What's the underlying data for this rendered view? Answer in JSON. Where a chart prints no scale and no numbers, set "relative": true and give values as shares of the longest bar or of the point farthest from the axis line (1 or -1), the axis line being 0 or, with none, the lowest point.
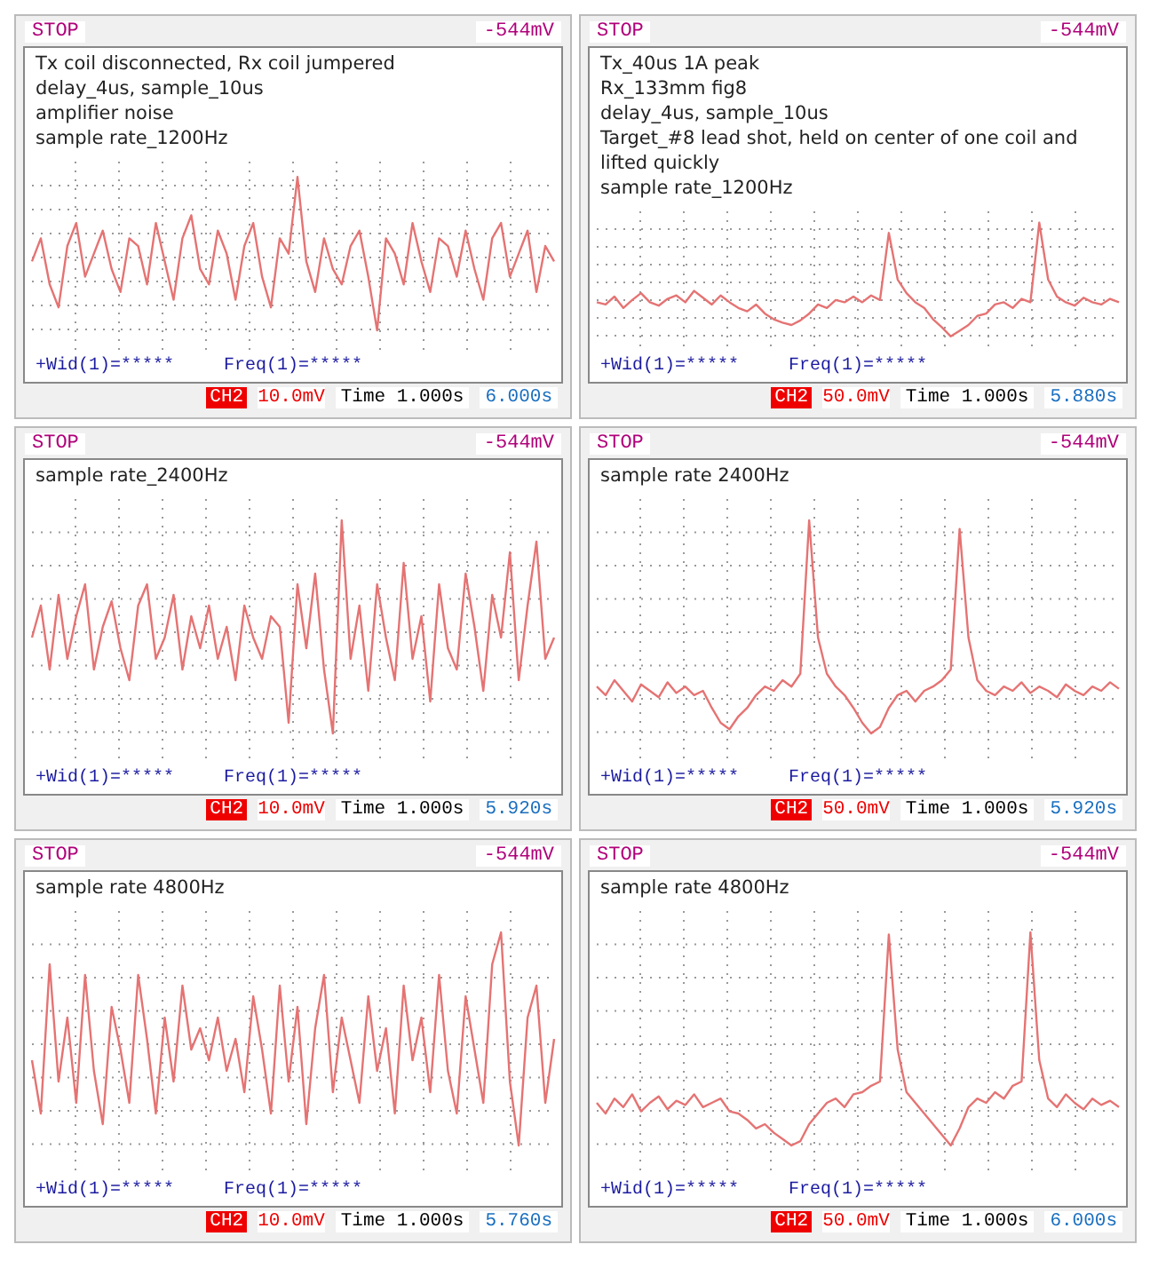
{
  "chart_data": [
    {
      "type": "line",
      "relative": true,
      "tick_labels": false,
      "grid": true,
      "marker": "none",
      "categories": [
        null,
        null,
        null,
        null,
        null,
        null,
        null,
        null,
        null,
        null,
        null,
        null,
        null,
        null,
        null,
        null,
        null,
        null,
        null,
        null,
        null,
        null,
        null,
        null,
        null,
        null,
        null,
        null,
        null,
        null,
        null,
        null,
        null,
        null,
        null,
        null,
        null,
        null,
        null,
        null,
        null,
        null,
        null,
        null,
        null,
        null,
        null,
        null,
        null,
        null,
        null,
        null,
        null,
        null,
        null,
        null,
        null,
        null,
        null,
        null
      ],
      "series": [
        {
          "color": "#e57373",
          "values": [
            0.45,
            0.6,
            0.3,
            0.15,
            0.55,
            0.7,
            0.35,
            0.5,
            0.65,
            0.4,
            0.25,
            0.6,
            0.55,
            0.3,
            0.7,
            0.45,
            0.2,
            0.6,
            0.75,
            0.4,
            0.3,
            0.65,
            0.5,
            0.2,
            0.55,
            0.7,
            0.35,
            0.15,
            0.6,
            0.5,
            1,
            0.45,
            0.25,
            0.6,
            0.4,
            0.3,
            0.55,
            0.65,
            0.35,
            0.0,
            0.6,
            0.5,
            0.3,
            0.7,
            0.45,
            0.25,
            0.6,
            0.55,
            0.35,
            0.65,
            0.4,
            0.2,
            0.6,
            0.7,
            0.35,
            0.5,
            0.65,
            0.25,
            0.55,
            0.45
          ]
        }
      ],
      "annotations": [
        "STOP",
        "-544mV",
        "Tx coil disconnected, Rx coil jumpered",
        "delay_4us, sample_10us",
        "amplifier noise",
        "sample rate_1200Hz",
        "+Wid(1)=*****",
        "Freq(1)=*****",
        "CH2",
        "10.0mV",
        "Time 1.000s",
        "6.000s"
      ]
    },
    {
      "type": "line",
      "relative": true,
      "tick_labels": false,
      "grid": true,
      "marker": "none",
      "categories": [
        null,
        null,
        null,
        null,
        null,
        null,
        null,
        null,
        null,
        null,
        null,
        null,
        null,
        null,
        null,
        null,
        null,
        null,
        null,
        null,
        null,
        null,
        null,
        null,
        null,
        null,
        null,
        null,
        null,
        null,
        null,
        null,
        null,
        null,
        null,
        null,
        null,
        null,
        null,
        null,
        null,
        null,
        null,
        null,
        null,
        null,
        null,
        null,
        null,
        null,
        null,
        null,
        null,
        null,
        null,
        null,
        null,
        null,
        null,
        null
      ],
      "series": [
        {
          "color": "#e57373",
          "values": [
            0.3,
            0.28,
            0.35,
            0.25,
            0.32,
            0.38,
            0.3,
            0.27,
            0.33,
            0.36,
            0.3,
            0.4,
            0.34,
            0.28,
            0.36,
            0.3,
            0.25,
            0.22,
            0.28,
            0.2,
            0.15,
            0.12,
            0.1,
            0.14,
            0.2,
            0.28,
            0.25,
            0.32,
            0.3,
            0.35,
            0.3,
            0.36,
            0.32,
            0.91,
            0.5,
            0.38,
            0.3,
            0.25,
            0.15,
            0.08,
            0.0,
            0.05,
            0.1,
            0.18,
            0.2,
            0.28,
            0.3,
            0.25,
            0.33,
            0.3,
            1,
            0.5,
            0.35,
            0.3,
            0.27,
            0.34,
            0.3,
            0.28,
            0.33,
            0.3
          ]
        }
      ],
      "annotations": [
        "STOP",
        "-544mV",
        "Tx_40us 1A peak",
        "Rx_133mm fig8",
        "delay_4us,   sample_10us",
        "Target_#8 lead shot, held on center of  one coil and lifted quickly",
        "sample rate_1200Hz",
        "+Wid(1)=*****",
        "Freq(1)=*****",
        "CH2",
        "50.0mV",
        "Time 1.000s",
        "5.880s"
      ]
    },
    {
      "type": "line",
      "relative": true,
      "tick_labels": false,
      "grid": true,
      "marker": "none",
      "categories": [
        null,
        null,
        null,
        null,
        null,
        null,
        null,
        null,
        null,
        null,
        null,
        null,
        null,
        null,
        null,
        null,
        null,
        null,
        null,
        null,
        null,
        null,
        null,
        null,
        null,
        null,
        null,
        null,
        null,
        null,
        null,
        null,
        null,
        null,
        null,
        null,
        null,
        null,
        null,
        null,
        null,
        null,
        null,
        null,
        null,
        null,
        null,
        null,
        null,
        null,
        null,
        null,
        null,
        null,
        null,
        null,
        null,
        null,
        null,
        null
      ],
      "series": [
        {
          "color": "#e57373",
          "values": [
            0.45,
            0.6,
            0.3,
            0.65,
            0.35,
            0.55,
            0.7,
            0.3,
            0.5,
            0.62,
            0.4,
            0.25,
            0.6,
            0.7,
            0.35,
            0.45,
            0.65,
            0.3,
            0.55,
            0.4,
            0.6,
            0.35,
            0.5,
            0.25,
            0.6,
            0.45,
            0.35,
            0.55,
            0.5,
            0.05,
            0.7,
            0.4,
            0.75,
            0.3,
            0.0,
            1,
            0.35,
            0.6,
            0.2,
            0.7,
            0.45,
            0.25,
            0.8,
            0.35,
            0.55,
            0.15,
            0.7,
            0.4,
            0.3,
            0.75,
            0.5,
            0.2,
            0.65,
            0.45,
            0.85,
            0.25,
            0.6,
            0.9,
            0.35,
            0.45
          ]
        }
      ],
      "annotations": [
        "STOP",
        "-544mV",
        "sample rate_2400Hz",
        "+Wid(1)=*****",
        "Freq(1)=*****",
        "CH2",
        "10.0mV",
        "Time 1.000s",
        "5.920s"
      ]
    },
    {
      "type": "line",
      "relative": true,
      "tick_labels": false,
      "grid": true,
      "marker": "none",
      "categories": [
        null,
        null,
        null,
        null,
        null,
        null,
        null,
        null,
        null,
        null,
        null,
        null,
        null,
        null,
        null,
        null,
        null,
        null,
        null,
        null,
        null,
        null,
        null,
        null,
        null,
        null,
        null,
        null,
        null,
        null,
        null,
        null,
        null,
        null,
        null,
        null,
        null,
        null,
        null,
        null,
        null,
        null,
        null,
        null,
        null,
        null,
        null,
        null,
        null,
        null,
        null,
        null,
        null,
        null,
        null,
        null,
        null,
        null,
        null,
        null
      ],
      "series": [
        {
          "color": "#e57373",
          "values": [
            0.22,
            0.18,
            0.25,
            0.2,
            0.15,
            0.23,
            0.2,
            0.17,
            0.24,
            0.19,
            0.22,
            0.18,
            0.2,
            0.12,
            0.05,
            0.02,
            0.08,
            0.12,
            0.18,
            0.22,
            0.2,
            0.25,
            0.22,
            0.28,
            1,
            0.45,
            0.28,
            0.22,
            0.18,
            0.12,
            0.05,
            0.0,
            0.03,
            0.12,
            0.18,
            0.2,
            0.15,
            0.2,
            0.22,
            0.25,
            0.3,
            0.96,
            0.45,
            0.25,
            0.2,
            0.18,
            0.22,
            0.2,
            0.24,
            0.19,
            0.22,
            0.2,
            0.17,
            0.23,
            0.2,
            0.18,
            0.22,
            0.2,
            0.24,
            0.21
          ]
        }
      ],
      "annotations": [
        "STOP",
        "-544mV",
        "sample rate 2400Hz",
        "+Wid(1)=*****",
        "Freq(1)=*****",
        "CH2",
        "50.0mV",
        "Time 1.000s",
        "5.920s"
      ]
    },
    {
      "type": "line",
      "relative": true,
      "tick_labels": false,
      "grid": true,
      "marker": "none",
      "categories": [
        null,
        null,
        null,
        null,
        null,
        null,
        null,
        null,
        null,
        null,
        null,
        null,
        null,
        null,
        null,
        null,
        null,
        null,
        null,
        null,
        null,
        null,
        null,
        null,
        null,
        null,
        null,
        null,
        null,
        null,
        null,
        null,
        null,
        null,
        null,
        null,
        null,
        null,
        null,
        null,
        null,
        null,
        null,
        null,
        null,
        null,
        null,
        null,
        null,
        null,
        null,
        null,
        null,
        null,
        null,
        null,
        null,
        null,
        null,
        null
      ],
      "series": [
        {
          "color": "#e57373",
          "values": [
            0.4,
            0.15,
            0.85,
            0.3,
            0.6,
            0.2,
            0.8,
            0.35,
            0.1,
            0.65,
            0.45,
            0.2,
            0.8,
            0.5,
            0.15,
            0.6,
            0.3,
            0.75,
            0.45,
            0.55,
            0.4,
            0.6,
            0.35,
            0.5,
            0.25,
            0.7,
            0.45,
            0.15,
            0.75,
            0.3,
            0.65,
            0.1,
            0.55,
            0.8,
            0.25,
            0.6,
            0.4,
            0.2,
            0.7,
            0.35,
            0.55,
            0.15,
            0.75,
            0.4,
            0.6,
            0.25,
            0.8,
            0.35,
            0.15,
            0.7,
            0.45,
            0.2,
            0.85,
            1,
            0.3,
            0.0,
            0.6,
            0.75,
            0.2,
            0.5
          ]
        }
      ],
      "annotations": [
        "STOP",
        "-544mV",
        "sample rate 4800Hz",
        "+Wid(1)=*****",
        "Freq(1)=*****",
        "CH2",
        "10.0mV",
        "Time 1.000s",
        "5.760s"
      ]
    },
    {
      "type": "line",
      "relative": true,
      "tick_labels": false,
      "grid": true,
      "marker": "none",
      "categories": [
        null,
        null,
        null,
        null,
        null,
        null,
        null,
        null,
        null,
        null,
        null,
        null,
        null,
        null,
        null,
        null,
        null,
        null,
        null,
        null,
        null,
        null,
        null,
        null,
        null,
        null,
        null,
        null,
        null,
        null,
        null,
        null,
        null,
        null,
        null,
        null,
        null,
        null,
        null,
        null,
        null,
        null,
        null,
        null,
        null,
        null,
        null,
        null,
        null,
        null,
        null,
        null,
        null,
        null,
        null,
        null,
        null,
        null,
        null,
        null
      ],
      "series": [
        {
          "color": "#e57373",
          "values": [
            0.2,
            0.15,
            0.22,
            0.18,
            0.24,
            0.16,
            0.2,
            0.23,
            0.17,
            0.21,
            0.19,
            0.24,
            0.18,
            0.2,
            0.22,
            0.16,
            0.15,
            0.12,
            0.08,
            0.1,
            0.06,
            0.03,
            0.0,
            0.02,
            0.1,
            0.15,
            0.2,
            0.22,
            0.18,
            0.24,
            0.25,
            0.28,
            0.3,
            0.99,
            0.45,
            0.25,
            0.2,
            0.15,
            0.1,
            0.05,
            0.0,
            0.08,
            0.18,
            0.22,
            0.2,
            0.25,
            0.22,
            0.28,
            0.3,
            1,
            0.4,
            0.22,
            0.18,
            0.24,
            0.2,
            0.17,
            0.22,
            0.19,
            0.21,
            0.18
          ]
        }
      ],
      "annotations": [
        "STOP",
        "-544mV",
        "sample rate 4800Hz",
        "+Wid(1)=*****",
        "Freq(1)=*****",
        "CH2",
        "50.0mV",
        "Time 1.000s",
        "6.000s"
      ]
    }
  ]
}
